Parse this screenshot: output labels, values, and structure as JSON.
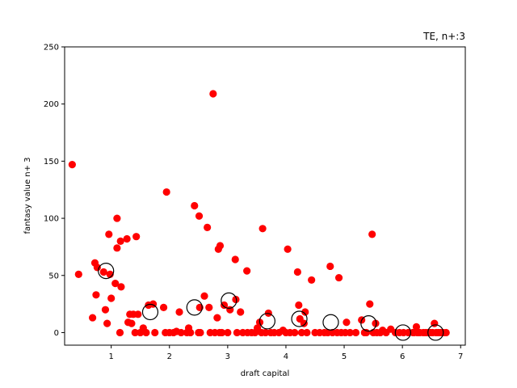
{
  "chart_data": {
    "type": "scatter",
    "title": "TE, n+:3",
    "xlabel": "draft capital",
    "ylabel": "fantasy value n+ 3",
    "xlim": [
      0.2,
      7.08
    ],
    "ylim": [
      -11,
      250
    ],
    "xticks": [
      1,
      2,
      3,
      4,
      5,
      6,
      7
    ],
    "yticks": [
      0,
      50,
      100,
      150,
      200,
      250
    ],
    "grid": false,
    "series": [
      {
        "marker": "filled-circle",
        "color": "#ff0000",
        "points": [
          [
            0.33,
            147
          ],
          [
            0.44,
            51
          ],
          [
            0.68,
            13
          ],
          [
            0.72,
            61
          ],
          [
            0.74,
            33
          ],
          [
            0.76,
            57
          ],
          [
            0.87,
            53
          ],
          [
            0.9,
            20
          ],
          [
            0.93,
            8
          ],
          [
            0.96,
            86
          ],
          [
            0.98,
            51
          ],
          [
            1.0,
            30
          ],
          [
            1.07,
            43
          ],
          [
            1.1,
            74
          ],
          [
            1.1,
            100
          ],
          [
            1.15,
            0
          ],
          [
            1.16,
            80
          ],
          [
            1.17,
            40
          ],
          [
            1.27,
            82
          ],
          [
            1.29,
            9
          ],
          [
            1.32,
            16
          ],
          [
            1.35,
            8
          ],
          [
            1.38,
            16
          ],
          [
            1.41,
            0
          ],
          [
            1.43,
            84
          ],
          [
            1.46,
            16
          ],
          [
            1.5,
            0
          ],
          [
            1.55,
            4
          ],
          [
            1.6,
            0
          ],
          [
            1.64,
            24
          ],
          [
            1.72,
            25
          ],
          [
            1.75,
            0
          ],
          [
            1.9,
            22
          ],
          [
            1.93,
            0
          ],
          [
            1.95,
            123
          ],
          [
            2.0,
            0
          ],
          [
            2.07,
            0
          ],
          [
            2.12,
            1
          ],
          [
            2.17,
            18
          ],
          [
            2.2,
            0
          ],
          [
            2.3,
            0
          ],
          [
            2.33,
            4
          ],
          [
            2.36,
            0
          ],
          [
            2.43,
            111
          ],
          [
            2.5,
            0
          ],
          [
            2.51,
            102
          ],
          [
            2.52,
            22
          ],
          [
            2.53,
            0
          ],
          [
            2.6,
            32
          ],
          [
            2.65,
            92
          ],
          [
            2.68,
            22
          ],
          [
            2.7,
            0
          ],
          [
            2.75,
            209
          ],
          [
            2.78,
            0
          ],
          [
            2.82,
            13
          ],
          [
            2.84,
            73
          ],
          [
            2.86,
            0
          ],
          [
            2.87,
            76
          ],
          [
            2.9,
            0
          ],
          [
            2.94,
            24
          ],
          [
            3.0,
            0
          ],
          [
            3.04,
            20
          ],
          [
            3.13,
            64
          ],
          [
            3.14,
            29
          ],
          [
            3.16,
            0
          ],
          [
            3.22,
            18
          ],
          [
            3.26,
            0
          ],
          [
            3.33,
            54
          ],
          [
            3.34,
            0
          ],
          [
            3.41,
            0
          ],
          [
            3.47,
            0
          ],
          [
            3.51,
            4
          ],
          [
            3.55,
            9
          ],
          [
            3.58,
            0
          ],
          [
            3.6,
            91
          ],
          [
            3.65,
            0
          ],
          [
            3.7,
            17
          ],
          [
            3.74,
            0
          ],
          [
            3.8,
            0
          ],
          [
            3.88,
            0
          ],
          [
            3.95,
            2
          ],
          [
            4.0,
            0
          ],
          [
            4.03,
            73
          ],
          [
            4.07,
            0
          ],
          [
            4.15,
            0
          ],
          [
            4.2,
            53
          ],
          [
            4.22,
            24
          ],
          [
            4.24,
            12
          ],
          [
            4.27,
            0
          ],
          [
            4.31,
            8
          ],
          [
            4.33,
            18
          ],
          [
            4.36,
            0
          ],
          [
            4.44,
            46
          ],
          [
            4.5,
            0
          ],
          [
            4.58,
            0
          ],
          [
            4.66,
            0
          ],
          [
            4.72,
            0
          ],
          [
            4.76,
            58
          ],
          [
            4.8,
            0
          ],
          [
            4.88,
            0
          ],
          [
            4.91,
            48
          ],
          [
            4.95,
            0
          ],
          [
            5.02,
            0
          ],
          [
            5.04,
            9
          ],
          [
            5.1,
            0
          ],
          [
            5.2,
            0
          ],
          [
            5.3,
            11
          ],
          [
            5.35,
            0
          ],
          [
            5.38,
            0
          ],
          [
            5.44,
            25
          ],
          [
            5.48,
            86
          ],
          [
            5.5,
            0
          ],
          [
            5.54,
            8
          ],
          [
            5.56,
            0
          ],
          [
            5.62,
            0
          ],
          [
            5.66,
            2
          ],
          [
            5.72,
            0
          ],
          [
            5.8,
            3
          ],
          [
            5.88,
            0
          ],
          [
            5.95,
            0
          ],
          [
            6.02,
            0
          ],
          [
            6.1,
            0
          ],
          [
            6.18,
            0
          ],
          [
            6.2,
            0
          ],
          [
            6.24,
            5
          ],
          [
            6.26,
            0
          ],
          [
            6.3,
            0
          ],
          [
            6.36,
            0
          ],
          [
            6.4,
            0
          ],
          [
            6.44,
            0
          ],
          [
            6.48,
            0
          ],
          [
            6.52,
            0
          ],
          [
            6.55,
            8
          ],
          [
            6.58,
            0
          ],
          [
            6.62,
            0
          ],
          [
            6.66,
            0
          ],
          [
            6.7,
            0
          ],
          [
            6.75,
            0
          ]
        ]
      },
      {
        "marker": "open-circle",
        "color": "#000000",
        "points": [
          [
            0.91,
            54
          ],
          [
            1.67,
            18
          ],
          [
            2.43,
            22
          ],
          [
            3.02,
            28
          ],
          [
            3.68,
            10
          ],
          [
            4.23,
            12
          ],
          [
            4.77,
            9
          ],
          [
            5.42,
            8
          ],
          [
            6.01,
            0
          ],
          [
            6.57,
            0
          ]
        ]
      }
    ]
  }
}
